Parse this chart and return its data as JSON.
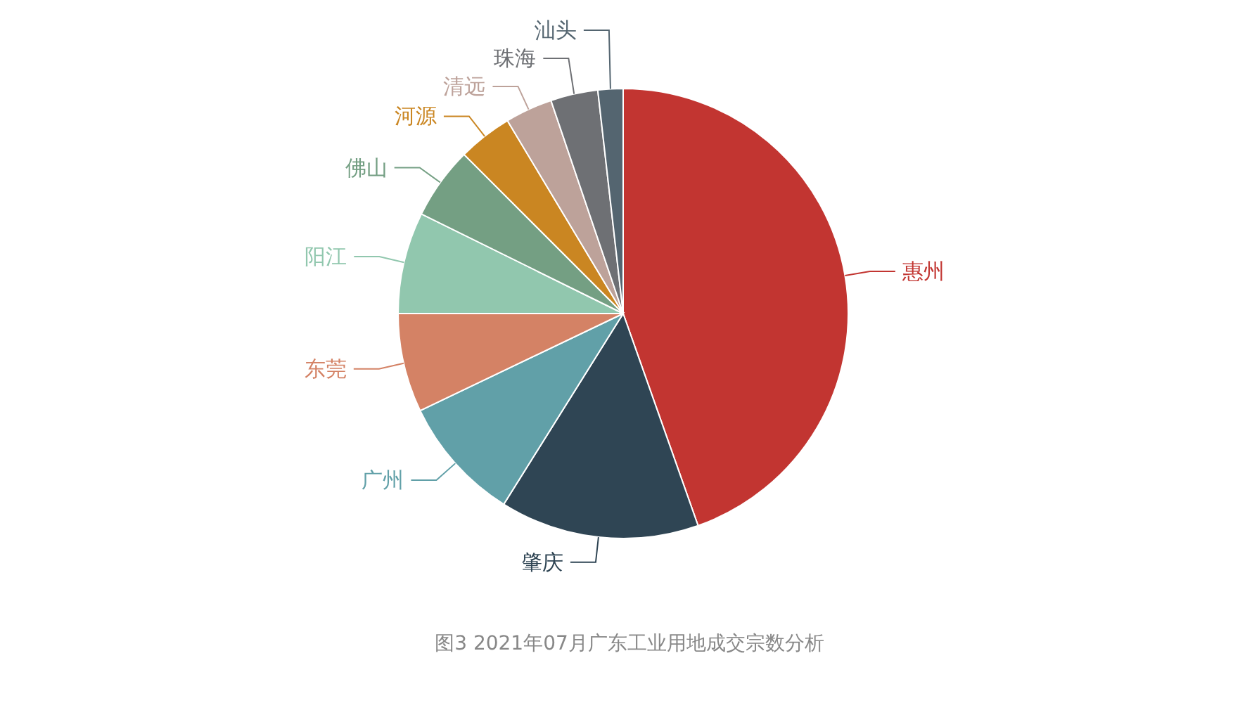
{
  "chart_data": {
    "type": "pie",
    "title": "图3 2021年07月广东工业用地成交宗数分析",
    "categories": [
      "惠州",
      "肇庆",
      "广州",
      "东莞",
      "阳江",
      "佛山",
      "河源",
      "清远",
      "珠海",
      "汕头"
    ],
    "values": [
      44.6,
      14.3,
      9,
      7.1,
      7.3,
      5.2,
      3.9,
      3.4,
      3.4,
      1.8
    ],
    "colors": [
      "#c23531",
      "#2f4554",
      "#61a0a8",
      "#d48265",
      "#91c7ae",
      "#749f83",
      "#ca8622",
      "#bda29a",
      "#6e7074",
      "#546570"
    ]
  }
}
